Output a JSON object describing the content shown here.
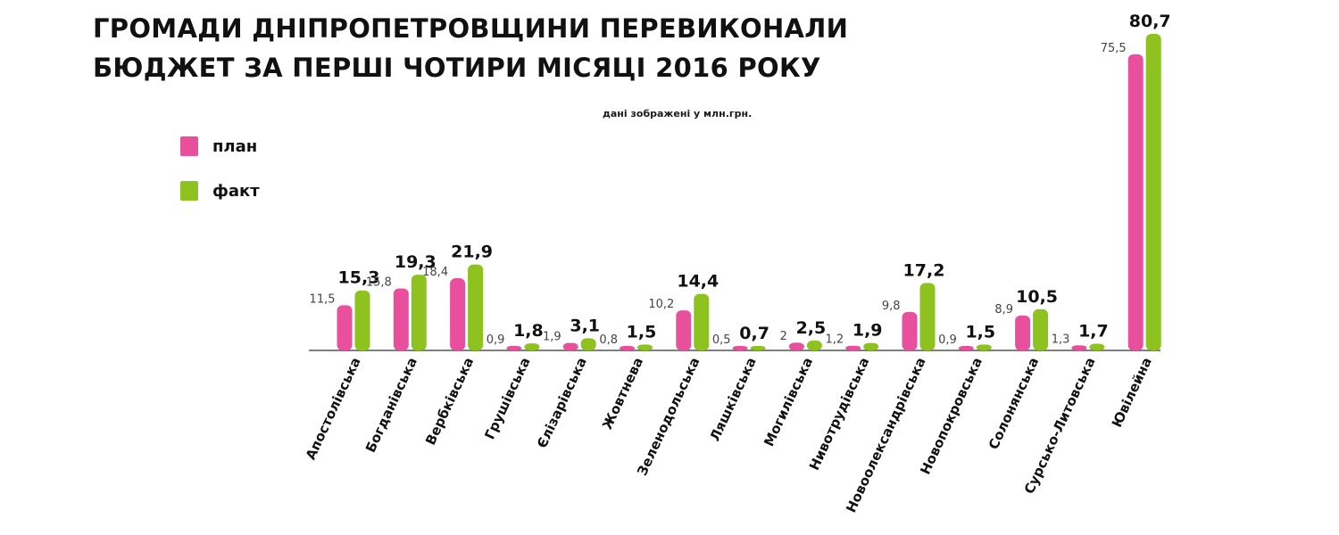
{
  "title": {
    "line1": "ГРОМАДИ ДНІПРОПЕТРОВЩИНИ ПЕРЕВИКОНАЛИ",
    "line2": "БЮДЖЕТ ЗА ПЕРШІ ЧОТИРИ МІСЯЦІ 2016 РОКУ"
  },
  "note": "дані зображені у млн.грн.",
  "legend": [
    {
      "label": "план",
      "color": "#e8509d"
    },
    {
      "label": "факт",
      "color": "#8dc21f"
    }
  ],
  "chart_data": {
    "type": "bar",
    "title": "ГРОМАДИ ДНІПРОПЕТРОВЩИНИ ПЕРЕВИКОНАЛИ БЮДЖЕТ ЗА ПЕРШІ ЧОТИРИ МІСЯЦІ 2016 РОКУ",
    "unit_note": "дані зображені у млн.грн.",
    "categories": [
      "Апостолівська",
      "Богданівська",
      "Вербківська",
      "Грушівська",
      "Єлізарівська",
      "Жовтнева",
      "Зеленодольська",
      "Ляшківська",
      "Могилівська",
      "Нивотрудівська",
      "Новоолександрівська",
      "Новопокровська",
      "Солонянська",
      "Сурсько-Литовська",
      "Ювілейна"
    ],
    "series": [
      {
        "name": "план",
        "color": "#e8509d",
        "values": [
          11.5,
          15.8,
          18.4,
          0.9,
          1.9,
          0.8,
          10.2,
          0.5,
          2,
          1.2,
          9.8,
          0.9,
          8.9,
          1.3,
          75.5
        ],
        "labels": [
          "11,5",
          "15,8",
          "18,4",
          "0,9",
          "1,9",
          "0,8",
          "10,2",
          "0,5",
          "2",
          "1,2",
          "9,8",
          "0,9",
          "8,9",
          "1,3",
          "75,5"
        ]
      },
      {
        "name": "факт",
        "color": "#8dc21f",
        "values": [
          15.3,
          19.3,
          21.9,
          1.8,
          3.1,
          1.5,
          14.4,
          0.7,
          2.5,
          1.9,
          17.2,
          1.5,
          10.5,
          1.7,
          80.7
        ],
        "labels": [
          "15,3",
          "19,3",
          "21,9",
          "1,8",
          "3,1",
          "1,5",
          "14,4",
          "0,7",
          "2,5",
          "1,9",
          "17,2",
          "1,5",
          "10,5",
          "1,7",
          "80,7"
        ]
      }
    ],
    "legend_position": "left",
    "grid": false
  }
}
